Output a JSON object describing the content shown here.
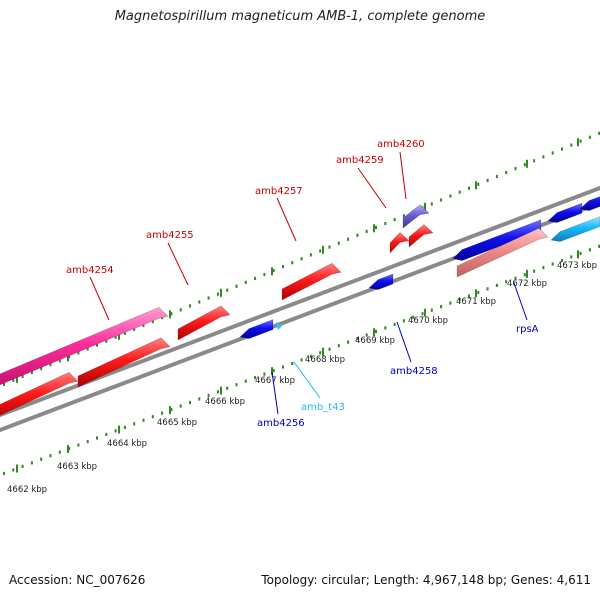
{
  "title": "Magnetospirillum magneticum AMB-1, complete genome",
  "footer": {
    "accession": "Accession: NC_007626",
    "summary": "Topology: circular; Length: 4,967,148 bp; Genes: 4,611"
  },
  "colors": {
    "backbone": "#8a8a8a",
    "tick": "#2f8a1f",
    "gene_red": "#ff0000",
    "gene_pink": "#ff2b9b",
    "gene_blue": "#0000ee",
    "gene_cyan": "#18b8ff",
    "gene_salmon": "#f08a8a",
    "gene_violet": "#6b5bd6",
    "label_red": "#cc0000",
    "label_blue": "#0000bb",
    "label_cyan": "#22bbee"
  },
  "scale": {
    "unit": "kbp",
    "tick_labels": [
      "4662 kbp",
      "4663 kbp",
      "4664 kbp",
      "4665 kbp",
      "4666 kbp",
      "4667 kbp",
      "4668 kbp",
      "4669 kbp",
      "4670 kbp",
      "4671 kbp",
      "4672 kbp",
      "4673 kbp"
    ]
  },
  "gene_labels": [
    {
      "text": "amb4254",
      "strand": "plus",
      "color": "label_red"
    },
    {
      "text": "amb4255",
      "strand": "plus",
      "color": "label_red"
    },
    {
      "text": "amb4257",
      "strand": "plus",
      "color": "label_red"
    },
    {
      "text": "amb4259",
      "strand": "plus",
      "color": "label_red"
    },
    {
      "text": "amb4260",
      "strand": "plus",
      "color": "label_red"
    },
    {
      "text": "amb4256",
      "strand": "minus",
      "color": "label_blue"
    },
    {
      "text": "amb_t43",
      "strand": "minus",
      "color": "label_cyan"
    },
    {
      "text": "amb4258",
      "strand": "minus",
      "color": "label_blue"
    },
    {
      "text": "rpsA",
      "strand": "minus",
      "color": "label_blue"
    }
  ]
}
